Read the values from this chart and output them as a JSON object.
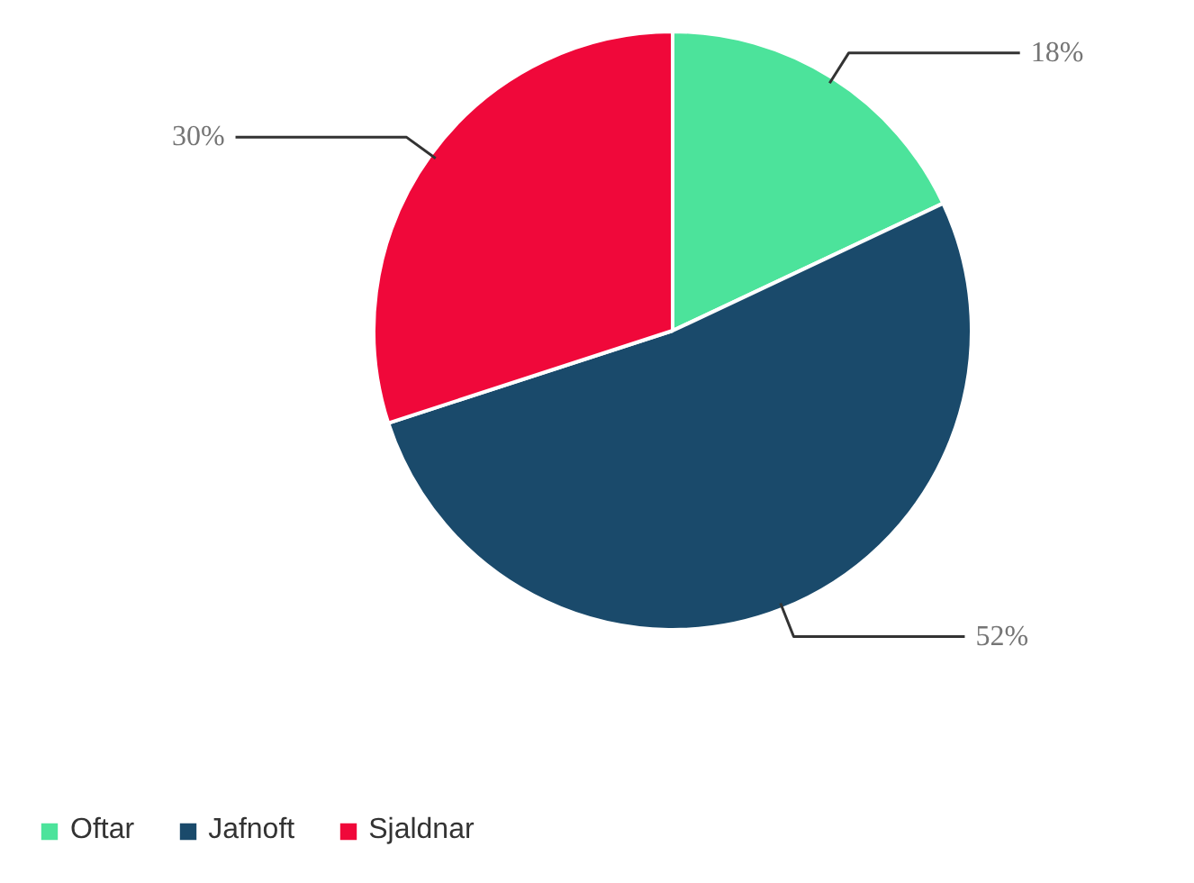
{
  "chart_data": {
    "type": "pie",
    "categories": [
      "Oftar",
      "Jafnoft",
      "Sjaldnar"
    ],
    "values": [
      18,
      52,
      30
    ],
    "colors": [
      "#4ce39b",
      "#1a4a6b",
      "#f0083a"
    ],
    "value_labels": [
      "18%",
      "52%",
      "30%"
    ],
    "legend": "bottom left"
  }
}
